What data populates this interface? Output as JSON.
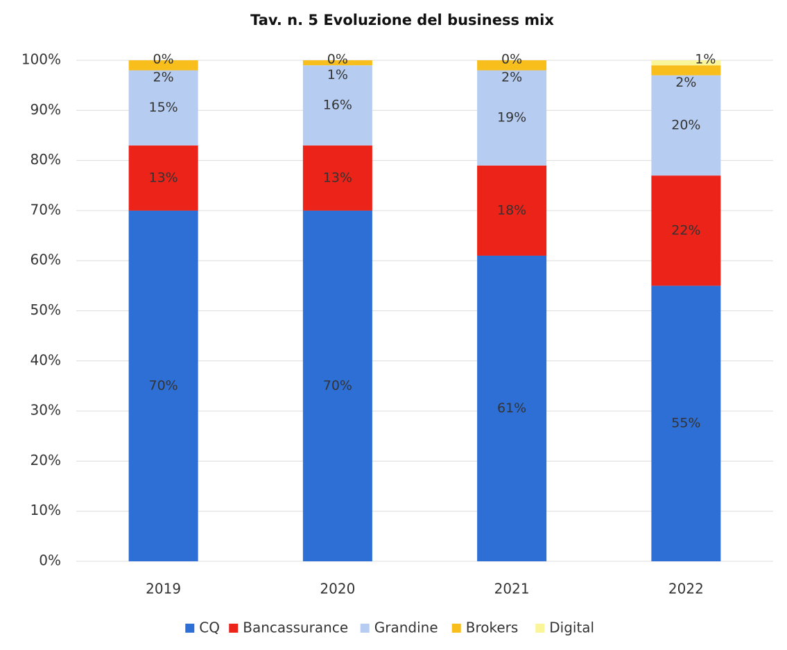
{
  "chart_data": {
    "type": "stacked_bar",
    "title": "Tav. n. 5 Evoluzione del business mix",
    "categories": [
      "2019",
      "2020",
      "2021",
      "2022"
    ],
    "series": [
      {
        "name": "CQ",
        "color": "#2e6fd6",
        "values": [
          70,
          70,
          61,
          55
        ],
        "value_labels": [
          "70%",
          "70%",
          "61%",
          "55%"
        ]
      },
      {
        "name": "Bancassurance",
        "color": "#ec2318",
        "values": [
          13,
          13,
          18,
          22
        ],
        "value_labels": [
          "13%",
          "13%",
          "18%",
          "22%"
        ]
      },
      {
        "name": "Grandine",
        "color": "#b6cdf1",
        "values": [
          15,
          16,
          19,
          20
        ],
        "value_labels": [
          "15%",
          "16%",
          "19%",
          "20%"
        ]
      },
      {
        "name": "Brokers",
        "color": "#f8be1c",
        "values": [
          2,
          1,
          2,
          2
        ],
        "value_labels": [
          "2%",
          "1%",
          "2%",
          "2%"
        ]
      },
      {
        "name": "Digital",
        "color": "#fbf59a",
        "values": [
          0,
          0,
          0,
          1
        ],
        "value_labels": [
          "0%",
          "0%",
          "0%",
          "1%"
        ]
      }
    ],
    "ylim": [
      0,
      100
    ],
    "yticks": [
      {
        "value": 0,
        "label": "0%"
      },
      {
        "value": 10,
        "label": "10%"
      },
      {
        "value": 20,
        "label": "20%"
      },
      {
        "value": 30,
        "label": "30%"
      },
      {
        "value": 40,
        "label": "40%"
      },
      {
        "value": 50,
        "label": "50%"
      },
      {
        "value": 60,
        "label": "60%"
      },
      {
        "value": 70,
        "label": "70%"
      },
      {
        "value": 80,
        "label": "80%"
      },
      {
        "value": 90,
        "label": "90%"
      },
      {
        "value": 100,
        "label": "100%"
      }
    ],
    "grid": true,
    "legend": "bottom"
  }
}
